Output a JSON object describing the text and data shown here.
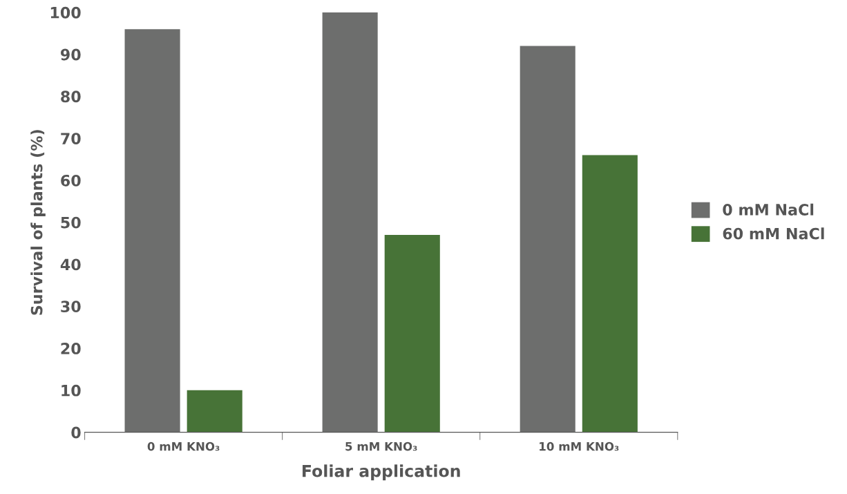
{
  "chart_data": {
    "type": "bar",
    "xlabel": "Foliar application",
    "ylabel": "Survival of plants (%)",
    "categories": [
      "0 mM KNO₃",
      "5 mM KNO₃",
      "10 mM KNO₃"
    ],
    "series": [
      {
        "name": "0 mM NaCl",
        "color": "#6d6e6d",
        "values": [
          96,
          100,
          92
        ]
      },
      {
        "name": "60 mM NaCl",
        "color": "#477337",
        "values": [
          10,
          47,
          66
        ]
      }
    ],
    "ylim": [
      0,
      100
    ],
    "yticks": [
      0,
      10,
      20,
      30,
      40,
      50,
      60,
      70,
      80,
      90,
      100
    ],
    "grid": false,
    "legend": "right"
  }
}
